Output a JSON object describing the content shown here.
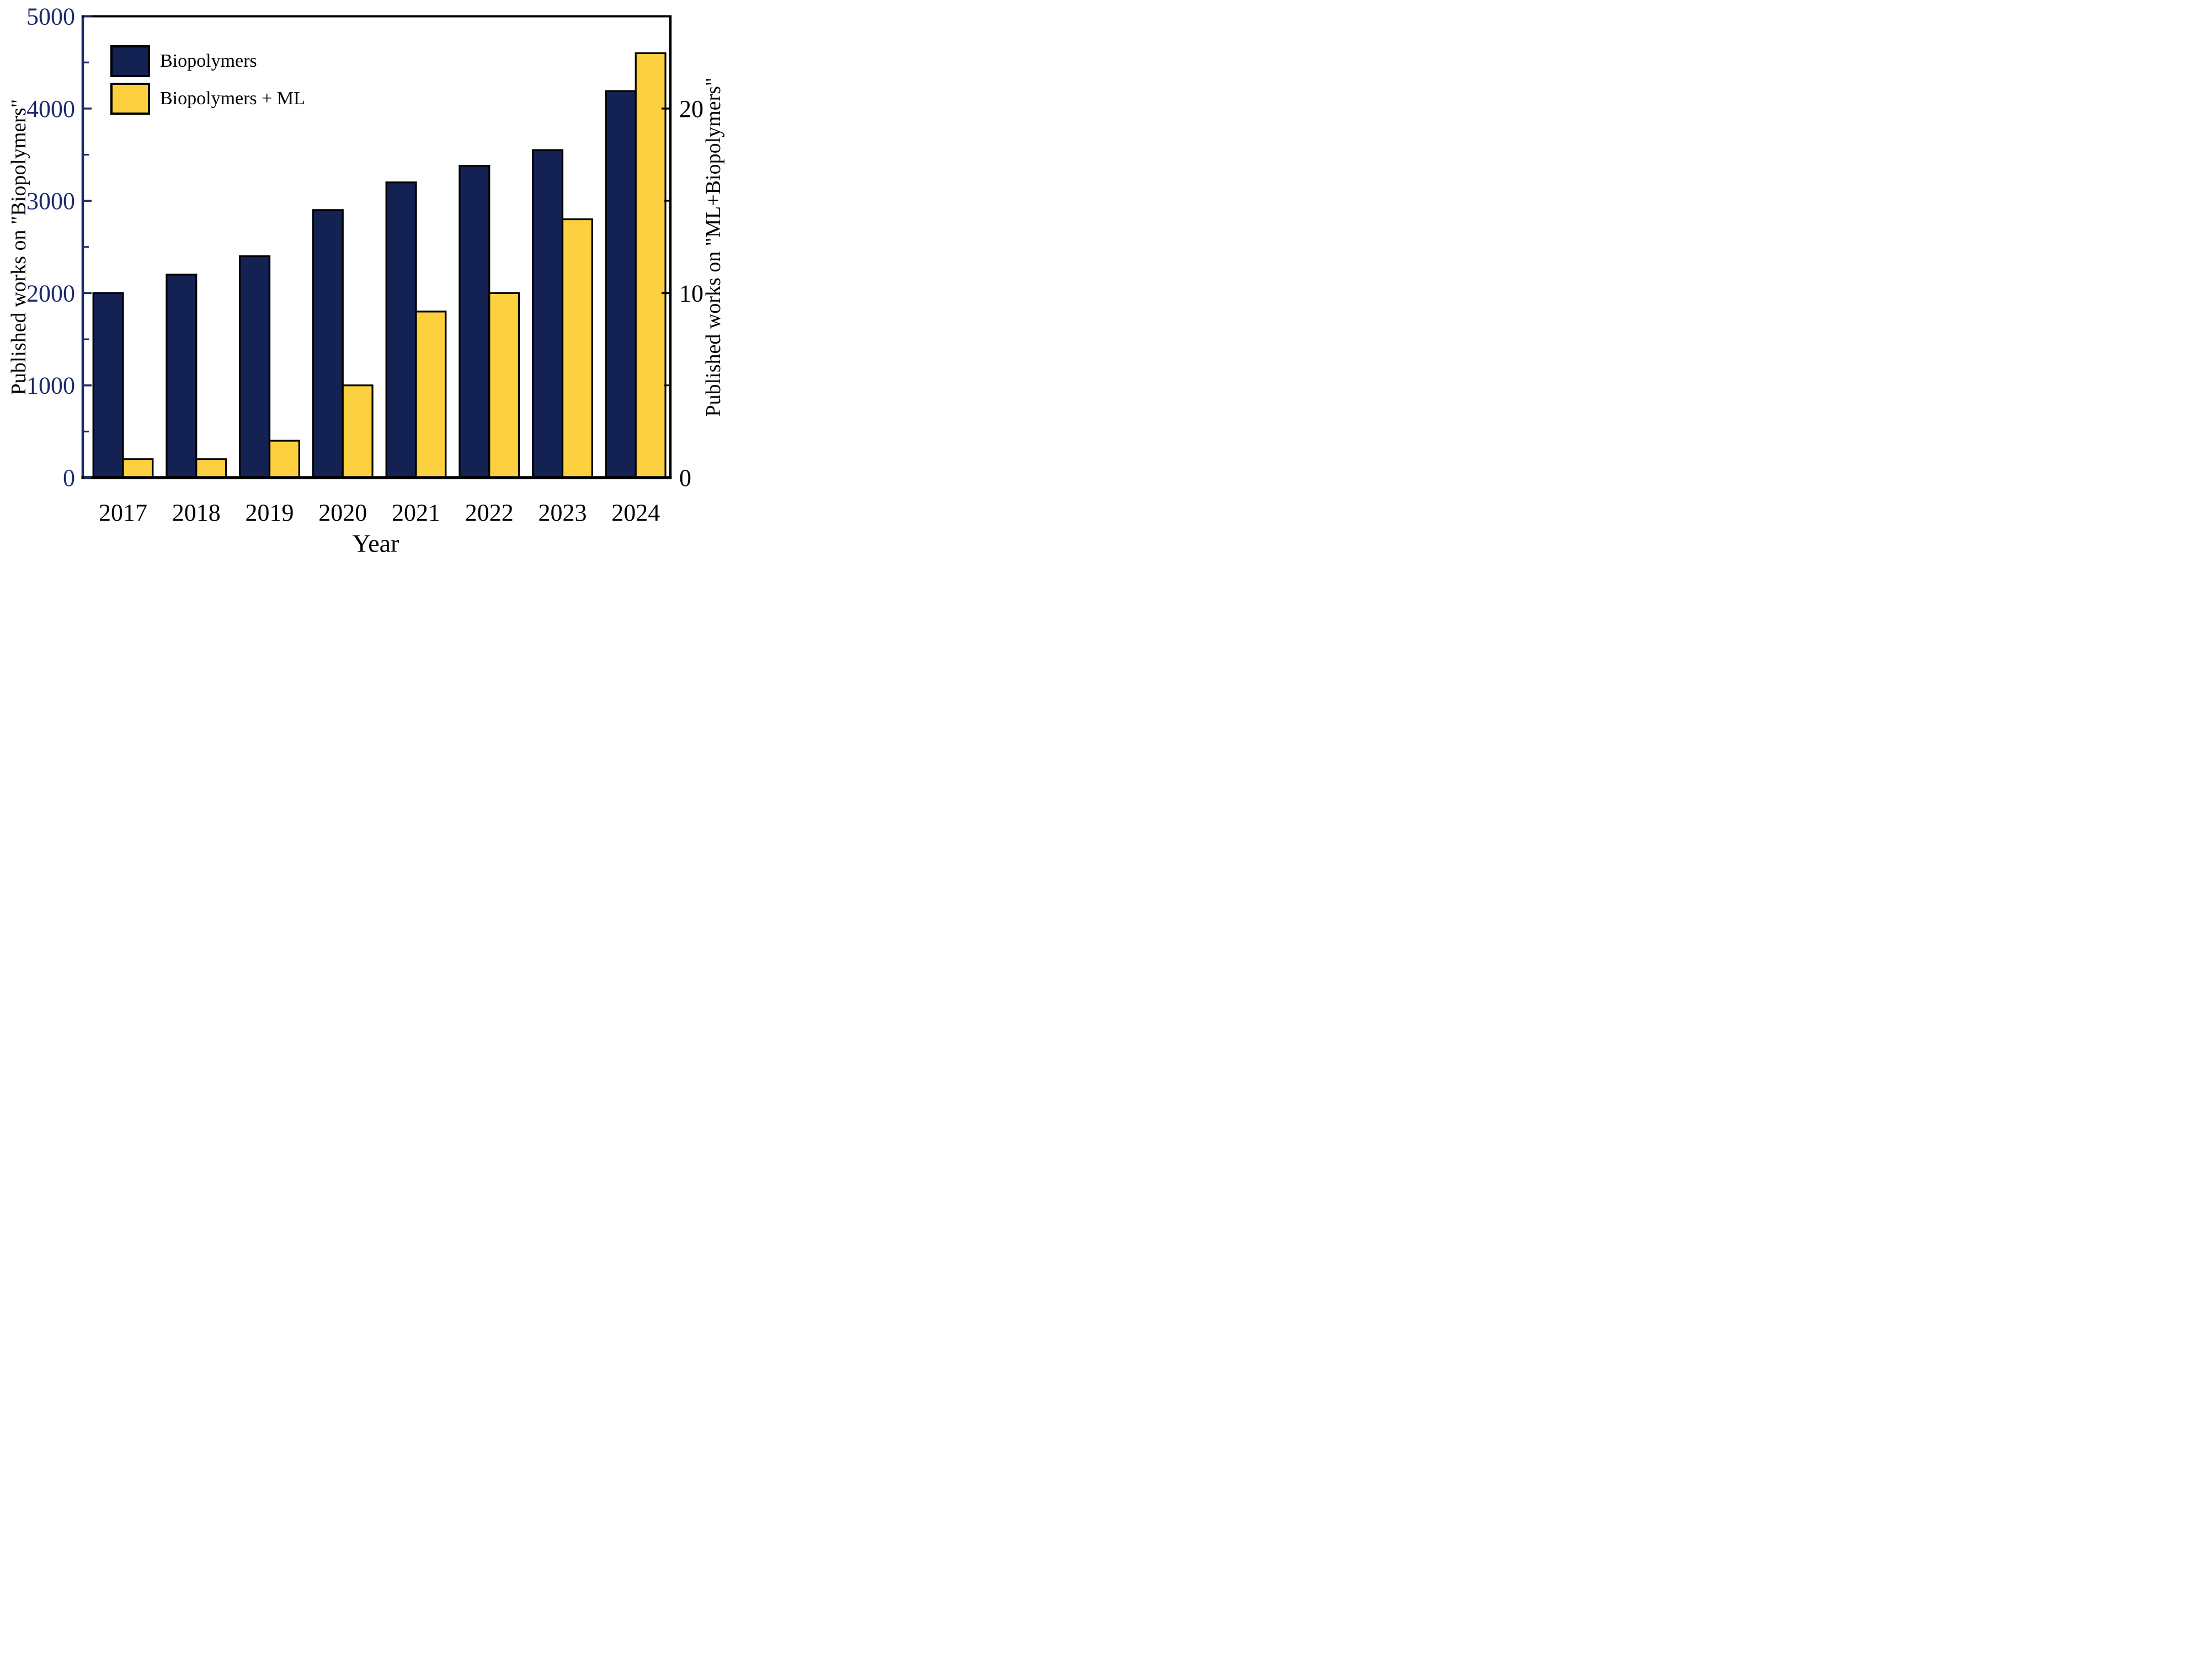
{
  "figure": {
    "background": "#ffffff"
  },
  "chart_data": {
    "type": "bar",
    "title": "",
    "categories": [
      "2017",
      "2018",
      "2019",
      "2020",
      "2021",
      "2022",
      "2023",
      "2024"
    ],
    "series": [
      {
        "name": "Biopolymers",
        "axis": "left",
        "color": "#142153",
        "border_color": "#000000",
        "values": [
          2000,
          2200,
          2400,
          2900,
          3200,
          3380,
          3550,
          4190
        ]
      },
      {
        "name": "Biopolymers + ML",
        "axis": "right",
        "color": "#fcd03e",
        "border_color": "#000000",
        "values": [
          1,
          1,
          2,
          5,
          9,
          10,
          14,
          23
        ]
      }
    ],
    "xlabel": "Year",
    "ylabel_left": "Published works on \"Biopolymers\"",
    "ylabel_right": "Published works on \"ML+Biopolymers\"",
    "ylim_left": [
      0,
      5000
    ],
    "ylim_right": [
      0,
      25
    ],
    "yticks_left": [
      0,
      1000,
      2000,
      3000,
      4000,
      5000
    ],
    "yticks_minor_left": [
      500,
      1500,
      2500,
      3500,
      4500
    ],
    "yticks_right": [
      0,
      10,
      20
    ],
    "yticks_minor_right": [
      5,
      15
    ],
    "grid": false,
    "tick_direction": "in",
    "legend_position": "top-left",
    "left_axis_color": "#1b2a6b",
    "right_axis_color": "#000000",
    "x_label_color": "#000000"
  },
  "legend": {
    "items": [
      {
        "label": "Biopolymers",
        "color": "#142153"
      },
      {
        "label": "Biopolymers + ML",
        "color": "#fcd03e"
      }
    ]
  }
}
